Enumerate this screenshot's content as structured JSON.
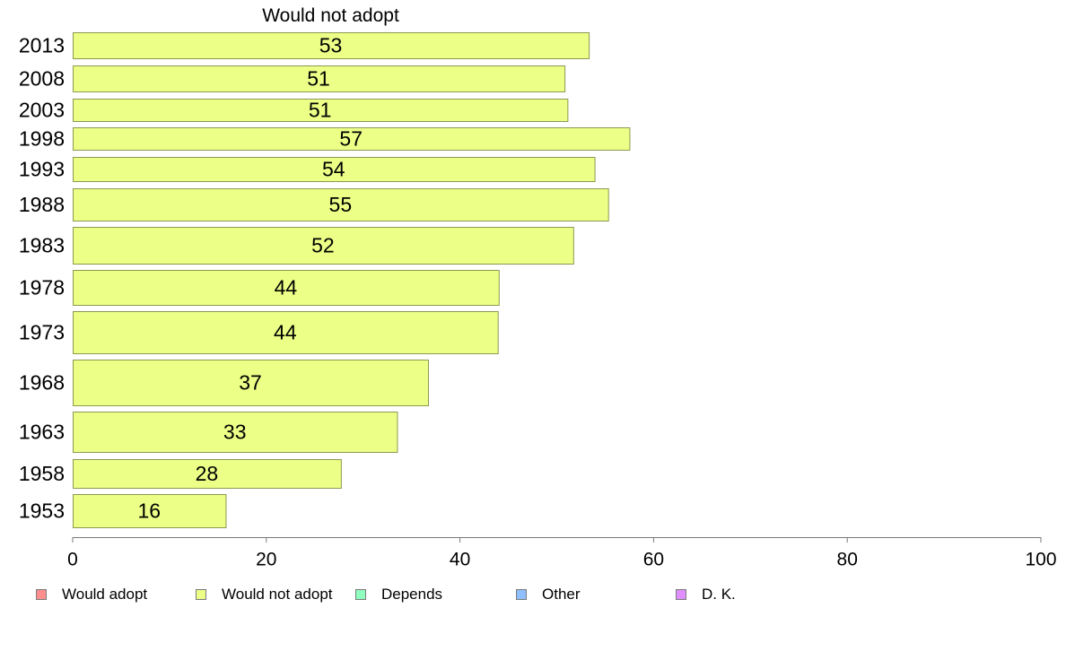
{
  "chart_data": {
    "type": "bar",
    "orientation": "horizontal",
    "title": "Would not adopt",
    "categories": [
      "2013",
      "2008",
      "2003",
      "1998",
      "1993",
      "1988",
      "1983",
      "1978",
      "1973",
      "1968",
      "1963",
      "1958",
      "1953"
    ],
    "series": [
      {
        "name": "Would not adopt",
        "color": "#ecff87",
        "values": [
          53.3,
          50.8,
          51.1,
          57.5,
          53.9,
          55.3,
          51.7,
          44.0,
          43.9,
          36.7,
          33.5,
          27.7,
          15.8
        ],
        "labels": [
          "53",
          "51",
          "51",
          "57",
          "54",
          "55",
          "52",
          "44",
          "44",
          "37",
          "33",
          "28",
          "16"
        ]
      }
    ],
    "xlim": [
      0,
      100
    ],
    "xticks": [
      "0",
      "20",
      "40",
      "60",
      "80",
      "100"
    ],
    "grid": false,
    "bar_color": "#ecff87",
    "bar_edge_color": "#8a9a50",
    "legend": {
      "placement": "bottom",
      "items": [
        {
          "label": "Would adopt",
          "color": "#ff8f8f"
        },
        {
          "label": "Would not adopt",
          "color": "#ecff87"
        },
        {
          "label": "Depends",
          "color": "#8fffbf"
        },
        {
          "label": "Other",
          "color": "#8fbfff"
        },
        {
          "label": "D. K.",
          "color": "#df8fff"
        }
      ]
    }
  }
}
